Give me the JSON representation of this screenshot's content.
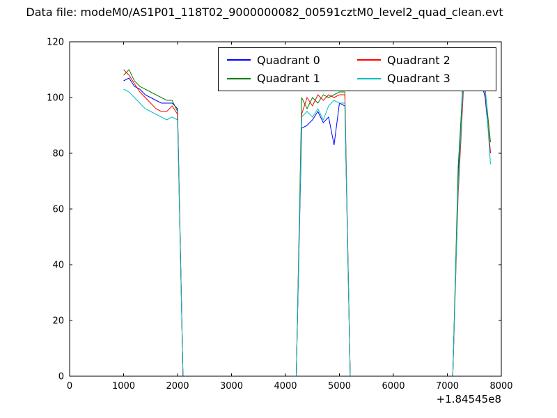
{
  "title": "Data file: modeM0/AS1P01_118T02_9000000082_00591cztM0_level2_quad_clean.evt",
  "chart_data": {
    "type": "line",
    "title": "Data file: modeM0/AS1P01_118T02_9000000082_00591cztM0_level2_quad_clean.evt",
    "xlabel": "",
    "ylabel": "",
    "xlim": [
      0,
      8000
    ],
    "ylim": [
      0,
      120
    ],
    "x_ticks": [
      0,
      1000,
      2000,
      3000,
      4000,
      5000,
      6000,
      7000,
      8000
    ],
    "y_ticks": [
      0,
      20,
      40,
      60,
      80,
      100,
      120
    ],
    "x_offset_label": "+1.84545e8",
    "grid": false,
    "legend_position": "upper center",
    "legend_columns": 2,
    "x": [
      1000,
      1100,
      1200,
      1300,
      1400,
      1500,
      1600,
      1700,
      1800,
      1900,
      2000,
      2100,
      4200,
      4300,
      4400,
      4500,
      4600,
      4700,
      4800,
      4900,
      5000,
      5100,
      5200,
      7100,
      7200,
      7300,
      7400,
      7500,
      7600,
      7700,
      7800
    ],
    "series": [
      {
        "name": "Quadrant 0",
        "color": "#0000ff",
        "values": [
          106,
          107,
          104,
          103,
          101,
          100,
          99,
          98,
          98,
          98,
          96,
          0,
          0,
          89,
          90,
          92,
          95,
          91,
          93,
          83,
          98,
          97,
          0,
          0,
          70,
          111,
          106,
          112,
          108,
          100,
          80
        ]
      },
      {
        "name": "Quadrant 1",
        "color": "#008000",
        "values": [
          108,
          110,
          106,
          104,
          103,
          102,
          101,
          100,
          99,
          99,
          95,
          0,
          0,
          100,
          96,
          100,
          98,
          101,
          100,
          101,
          102,
          102,
          0,
          0,
          75,
          108,
          117,
          111,
          108,
          103,
          84
        ]
      },
      {
        "name": "Quadrant 2",
        "color": "#ff0000",
        "values": [
          110,
          108,
          105,
          102,
          100,
          98,
          96,
          95,
          95,
          97,
          94,
          0,
          0,
          94,
          100,
          97,
          101,
          99,
          101,
          100,
          101,
          101,
          0,
          0,
          65,
          104,
          110,
          107,
          106,
          102,
          80
        ]
      },
      {
        "name": "Quadrant 3",
        "color": "#00bfbf",
        "values": [
          103,
          102,
          100,
          98,
          96,
          95,
          94,
          93,
          92,
          93,
          92,
          0,
          0,
          93,
          95,
          93,
          96,
          92,
          97,
          99,
          98,
          98,
          0,
          0,
          68,
          107,
          110,
          108,
          106,
          104,
          76
        ]
      }
    ]
  }
}
